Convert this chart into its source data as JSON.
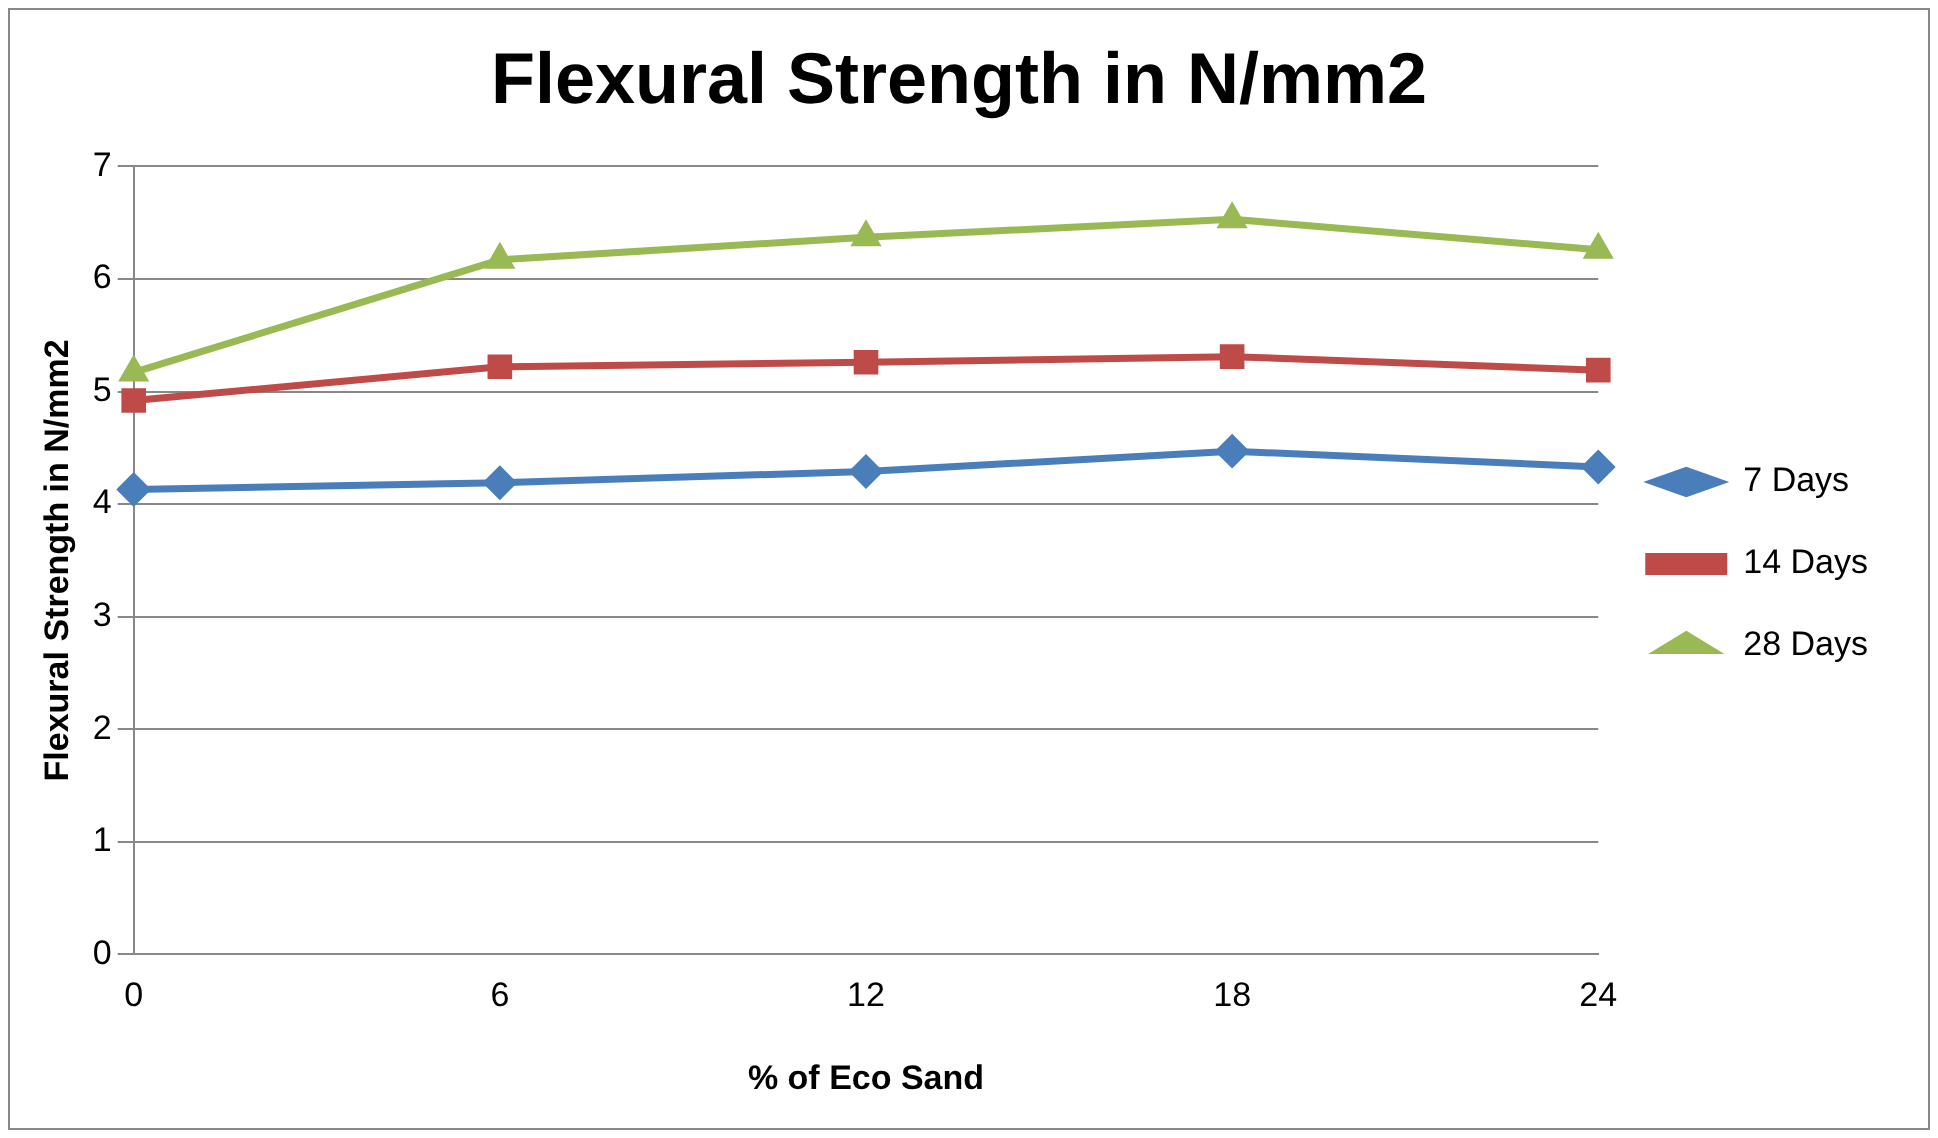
{
  "chart_data": {
    "type": "line",
    "title": "Flexural Strength in N/mm2",
    "xlabel": "% of Eco Sand",
    "ylabel": "Flexural Strength in N/mm2",
    "categories": [
      "0",
      "6",
      "12",
      "18",
      "24"
    ],
    "series": [
      {
        "name": "7 Days",
        "color": "#4a7ebb",
        "marker": "diamond",
        "values": [
          4.13,
          4.19,
          4.29,
          4.47,
          4.33
        ]
      },
      {
        "name": "14 Days",
        "color": "#be4b48",
        "marker": "square",
        "values": [
          4.92,
          5.22,
          5.26,
          5.31,
          5.19
        ]
      },
      {
        "name": "28 Days",
        "color": "#98b954",
        "marker": "triangle",
        "values": [
          5.17,
          6.17,
          6.37,
          6.53,
          6.26
        ]
      }
    ],
    "ylim": [
      0,
      7
    ],
    "yticks": [
      0,
      1,
      2,
      3,
      4,
      5,
      6,
      7
    ],
    "grid": "y",
    "legend": "right"
  }
}
